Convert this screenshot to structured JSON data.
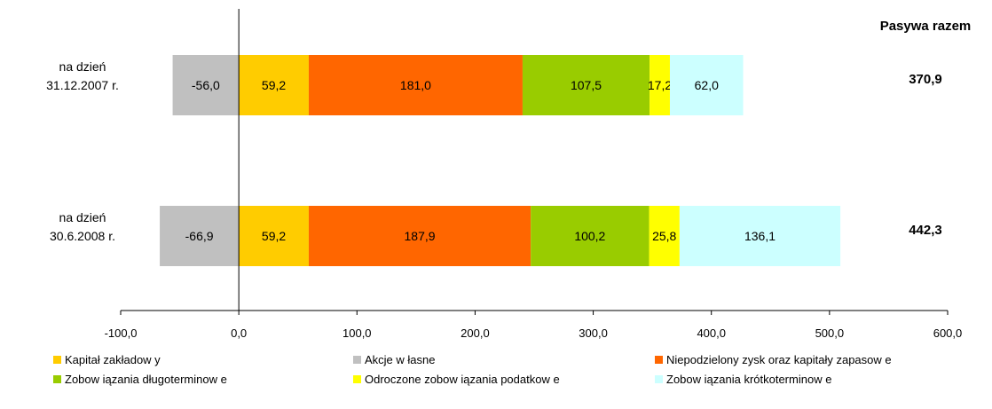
{
  "chart_data": {
    "type": "bar",
    "orientation": "horizontal",
    "stacked": true,
    "categories": [
      [
        "na dzień",
        "31.12.2007 r."
      ],
      [
        "na dzień",
        "30.6.2008 r."
      ]
    ],
    "series": [
      {
        "name": "Akcje w łasne",
        "color": "#c0c0c0",
        "values": [
          -56.0,
          -66.9
        ],
        "labels": [
          "-56,0",
          "-66,9"
        ]
      },
      {
        "name": "Kapitał zakładow y",
        "color": "#ffcc00",
        "values": [
          59.2,
          59.2
        ],
        "labels": [
          "59,2",
          "59,2"
        ]
      },
      {
        "name": "Niepodzielony zysk oraz kapitały zapasow e",
        "color": "#ff6600",
        "values": [
          181.0,
          187.9
        ],
        "labels": [
          "181,0",
          "187,9"
        ]
      },
      {
        "name": "Zobow iązania długoterminow e",
        "color": "#99cc00",
        "values": [
          107.5,
          100.2
        ],
        "labels": [
          "107,5",
          "100,2"
        ]
      },
      {
        "name": "Odroczone zobow iązania podatkow e",
        "color": "#ffff00",
        "values": [
          17.2,
          25.8
        ],
        "labels": [
          "17,2",
          "25,8"
        ]
      },
      {
        "name": "Zobow iązania krótkoterminow e",
        "color": "#ccffff",
        "values": [
          62.0,
          136.1
        ],
        "labels": [
          "62,0",
          "136,1"
        ]
      }
    ],
    "totals_title": "Pasywa razem",
    "totals": [
      "370,9",
      "442,3"
    ],
    "xlim": [
      -100,
      600
    ],
    "xticks": [
      -100,
      0,
      100,
      200,
      300,
      400,
      500,
      600
    ],
    "xtick_labels": [
      "-100,0",
      "0,0",
      "100,0",
      "200,0",
      "300,0",
      "400,0",
      "500,0",
      "600,0"
    ],
    "legend": {
      "placement": "bottom",
      "entries": [
        {
          "name": "Kapitał zakładow y",
          "color": "#ffcc00"
        },
        {
          "name": "Akcje w łasne",
          "color": "#c0c0c0"
        },
        {
          "name": "Niepodzielony zysk oraz kapitały zapasow e",
          "color": "#ff6600"
        },
        {
          "name": "Zobow iązania długoterminow e",
          "color": "#99cc00"
        },
        {
          "name": "Odroczone zobow iązania podatkow e",
          "color": "#ffff00"
        },
        {
          "name": "Zobow iązania krótkoterminow e",
          "color": "#ccffff"
        }
      ]
    },
    "grid": false
  }
}
